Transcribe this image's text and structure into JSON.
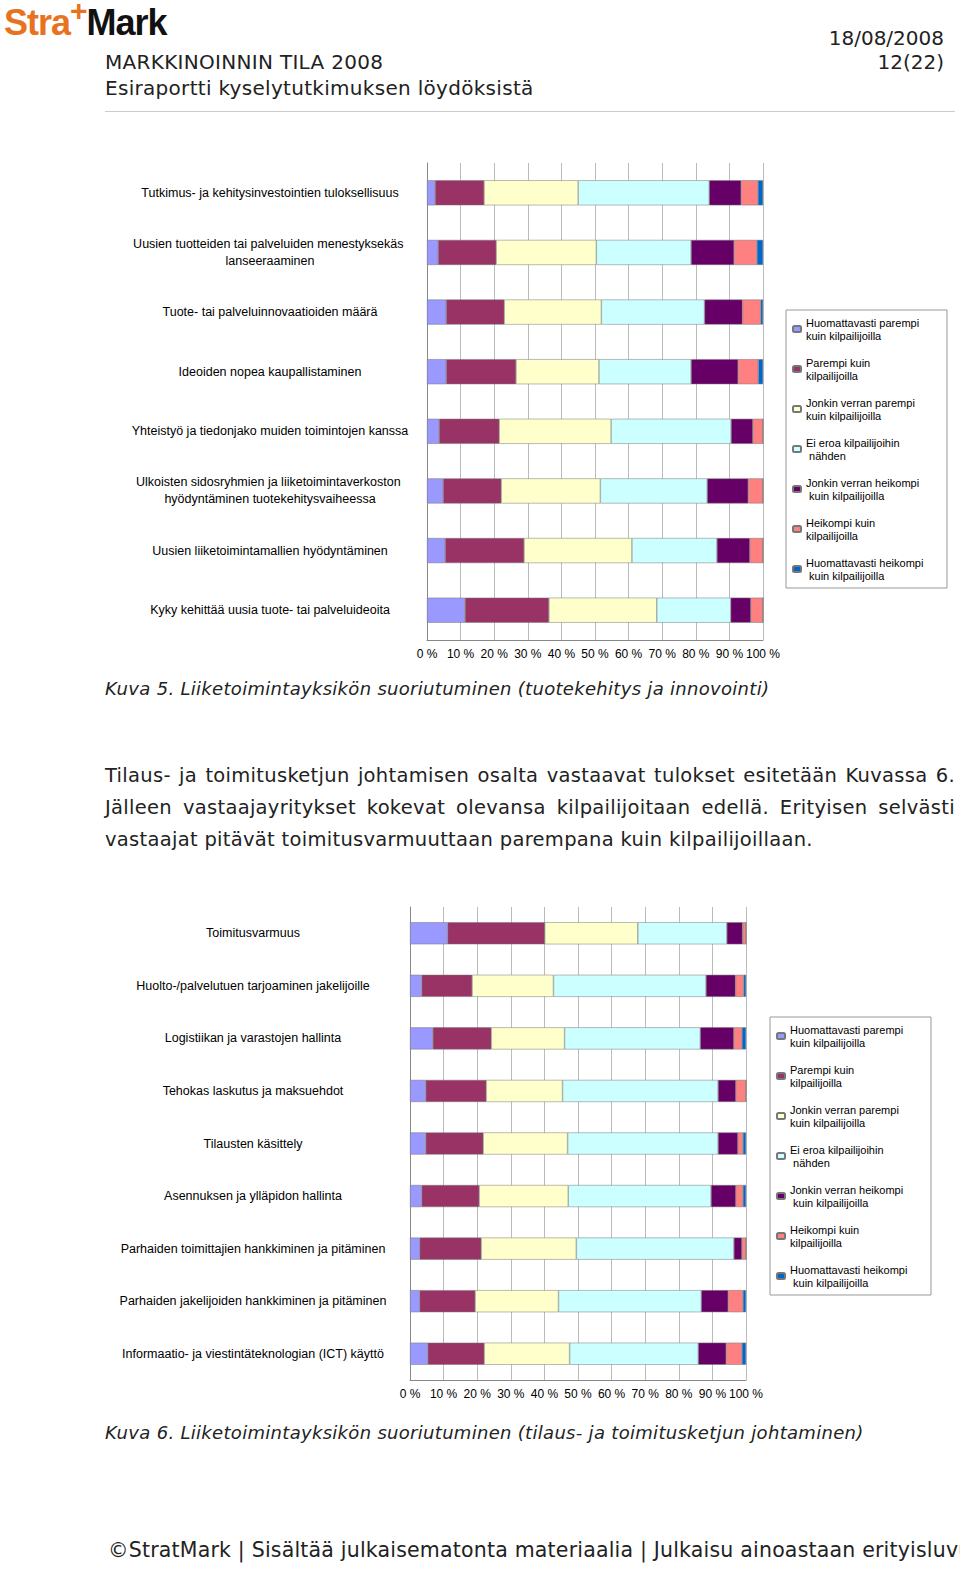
{
  "header": {
    "logo": [
      "Stra",
      "+",
      "Mark"
    ],
    "title": "MARKKINOINNIN TILA 2008",
    "subtitle": "Esiraportti kyselytutkimuksen löydöksistä",
    "date": "18/08/2008",
    "page": "12(22)"
  },
  "chart_data": [
    {
      "type": "bar",
      "title": "Kuva 5. Liiketoimintayksikön suoriutuminen (tuotekehitys ja innovointi)",
      "orientation": "horizontal",
      "stacked": true,
      "grid": true,
      "legend": "right",
      "categories": [
        "Tutkimus- ja kehitysinvestointien tuloksellisuus",
        "Uusien tuotteiden tai palveluiden menestyksekäs lanseeraaminen",
        "Tuote- tai palveluinnovaatioiden määrä",
        "Ideoiden nopea kaupallistaminen",
        "Yhteistyö ja tiedonjako muiden toimintojen kanssa",
        "Ulkoisten sidosryhmien ja liiketoimintaverkoston hyödyntäminen tuotekehitysvaiheessa",
        "Uusien liiketoimintamallien hyödyntäminen",
        "Kyky kehittää uusia tuote- tai palveluideoita"
      ],
      "series": [
        {
          "name": "Huomattavasti parempi kuin kilpailijoilla",
          "color": "#9999FF",
          "values": [
            2.4,
            3.3,
            5.7,
            5.7,
            3.6,
            4.8,
            5.4,
            11.3
          ]
        },
        {
          "name": "Parempi kuin kilpailijoilla",
          "color": "#993366",
          "values": [
            14.6,
            17.3,
            17.3,
            20.8,
            17.9,
            17.3,
            23.5,
            25
          ]
        },
        {
          "name": "Jonkin verran parempi kuin kilpailijoilla",
          "color": "#FFFFCC",
          "values": [
            28,
            29.8,
            28.9,
            24.7,
            33.3,
            29.5,
            32.1,
            32.1
          ]
        },
        {
          "name": "Ei eroa kilpailijoihin nähden",
          "color": "#CCFFFF",
          "values": [
            39,
            28.2,
            30.7,
            27.4,
            35.7,
            31.8,
            25.3,
            22
          ]
        },
        {
          "name": "Jonkin verran heikompi kuin kilpailijoilla",
          "color": "#660066",
          "values": [
            9.5,
            12.8,
            11.3,
            14,
            6.5,
            12.2,
            9.8,
            6
          ]
        },
        {
          "name": "Heikompi kuin kilpailijoilla",
          "color": "#FF8080",
          "values": [
            5,
            6.8,
            5.4,
            6,
            3,
            4.4,
            3.9,
            3.6
          ]
        },
        {
          "name": "Huomattavasti heikompi kuin kilpailijoilla",
          "color": "#0066CC",
          "values": [
            1.5,
            1.8,
            0.7,
            1.4,
            0,
            0,
            0,
            0
          ]
        }
      ],
      "xlim": [
        0,
        100
      ],
      "xticks": [
        {
          "value": 0,
          "label": "0 %"
        },
        {
          "value": 10,
          "label": "10 %"
        },
        {
          "value": 20,
          "label": "20 %"
        },
        {
          "value": 30,
          "label": "30 %"
        },
        {
          "value": 40,
          "label": "40 %"
        },
        {
          "value": 50,
          "label": "50 %"
        },
        {
          "value": 60,
          "label": "60 %"
        },
        {
          "value": 70,
          "label": "70 %"
        },
        {
          "value": 80,
          "label": "80 %"
        },
        {
          "value": 90,
          "label": "90 %"
        },
        {
          "value": 100,
          "label": "100 %"
        }
      ]
    },
    {
      "type": "bar",
      "title": "Kuva 6. Liiketoimintayksikön suoriutuminen (tilaus- ja toimitusketjun johtaminen)",
      "orientation": "horizontal",
      "stacked": true,
      "grid": true,
      "legend": "right",
      "categories": [
        "Toimitusvarmuus",
        "Huolto-/palvelutuen tarjoaminen jakelijoille",
        "Logistiikan ja varastojen hallinta",
        "Tehokas laskutus ja maksuehdot",
        "Tilausten käsittely",
        "Asennuksen ja ylläpidon hallinta",
        "Parhaiden toimittajien hankkiminen ja pitäminen",
        "Parhaiden jakelijoiden hankkiminen ja pitäminen",
        "Informaatio- ja viestintäteknologian (ICT) käyttö"
      ],
      "series": [
        {
          "name": "Huomattavasti parempi kuin kilpailijoilla",
          "color": "#9999FF",
          "values": [
            11.2,
            3.5,
            6.8,
            4.7,
            4.7,
            3.5,
            2.9,
            2.9,
            5.3
          ]
        },
        {
          "name": "Parempi kuin kilpailijoilla",
          "color": "#993366",
          "values": [
            28.9,
            15,
            17.4,
            18,
            17.1,
            17.1,
            18.3,
            16.5,
            16.8
          ]
        },
        {
          "name": "Jonkin verran parempi kuin kilpailijoilla",
          "color": "#FFFFCC",
          "values": [
            27.7,
            24.2,
            21.8,
            22.7,
            25.1,
            26.5,
            28.3,
            24.8,
            25.4
          ]
        },
        {
          "name": "Ei eroa kilpailijoihin nähden",
          "color": "#CCFFFF",
          "values": [
            26.5,
            45.4,
            40.4,
            46.3,
            44.8,
            42.5,
            46.9,
            42.5,
            38.3
          ]
        },
        {
          "name": "Jonkin verran heikompi kuin kilpailijoilla",
          "color": "#660066",
          "values": [
            4.7,
            8.8,
            10,
            5.3,
            5.9,
            7.4,
            2.4,
            8,
            8.3
          ]
        },
        {
          "name": "Heikompi kuin kilpailijoilla",
          "color": "#FF8080",
          "values": [
            1,
            2.4,
            2.4,
            3,
            1.5,
            2.1,
            1.2,
            4.4,
            4.7
          ]
        },
        {
          "name": "Huomattavasti heikompi kuin kilpailijoilla",
          "color": "#0066CC",
          "values": [
            0,
            0.7,
            1.2,
            0,
            0.9,
            0.9,
            0,
            0.9,
            1.2
          ]
        }
      ],
      "xlim": [
        0,
        100
      ],
      "xticks": [
        {
          "value": 0,
          "label": "0 %"
        },
        {
          "value": 10,
          "label": "10 %"
        },
        {
          "value": 20,
          "label": "20 %"
        },
        {
          "value": 30,
          "label": "30 %"
        },
        {
          "value": 40,
          "label": "40 %"
        },
        {
          "value": 50,
          "label": "50 %"
        },
        {
          "value": 60,
          "label": "60 %"
        },
        {
          "value": 70,
          "label": "70 %"
        },
        {
          "value": 80,
          "label": "80 %"
        },
        {
          "value": 90,
          "label": "90 %"
        },
        {
          "value": 100,
          "label": "100 %"
        }
      ]
    }
  ],
  "paragraph": "Tilaus- ja toimitusketjun johtamisen osalta vastaavat tulokset esitetään Kuvassa 6. Jälleen vastaajayritykset kokevat olevansa kilpailijoitaan edellä. Erityisen selvästi vastaajat pitävät toimitusvarmuuttaan parempana kuin kilpailijoillaan.",
  "footer": "©StratMark | Sisältää julkaisematonta materiaalia | Julkaisu ainoastaan erityisluvulla"
}
